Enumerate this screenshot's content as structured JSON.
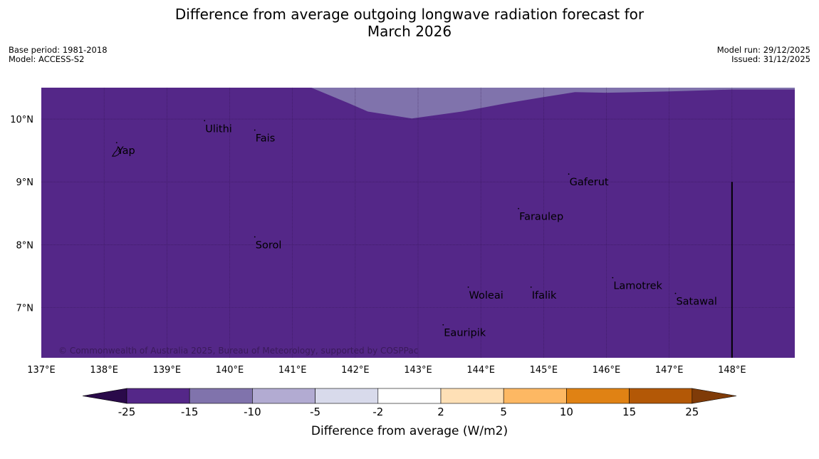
{
  "title": {
    "line1": "Difference from average outgoing longwave radiation forecast for",
    "line2": "March 2026"
  },
  "meta_left": {
    "base_period": "Base period: 1981-2018",
    "model": "Model: ACCESS-S2"
  },
  "meta_right": {
    "model_run": "Model run: 29/12/2025",
    "issued": "Issued: 31/12/2025"
  },
  "lon_labels": [
    "137°E",
    "138°E",
    "139°E",
    "140°E",
    "141°E",
    "142°E",
    "143°E",
    "144°E",
    "145°E",
    "146°E",
    "147°E",
    "148°E"
  ],
  "lat_labels": [
    "10°N",
    "9°N",
    "8°N",
    "7°N"
  ],
  "places": [
    {
      "name": "Yap",
      "lon": 138.2,
      "lat": 9.5
    },
    {
      "name": "Ulithi",
      "lon": 139.6,
      "lat": 9.85
    },
    {
      "name": "Fais",
      "lon": 140.4,
      "lat": 9.7
    },
    {
      "name": "Gaferut",
      "lon": 145.4,
      "lat": 9.0
    },
    {
      "name": "Faraulep",
      "lon": 144.6,
      "lat": 8.45
    },
    {
      "name": "Sorol",
      "lon": 140.4,
      "lat": 8.0
    },
    {
      "name": "Lamotrek",
      "lon": 146.1,
      "lat": 7.35
    },
    {
      "name": "Satawal",
      "lon": 147.1,
      "lat": 7.1
    },
    {
      "name": "Woleai",
      "lon": 143.8,
      "lat": 7.2
    },
    {
      "name": "Ifalik",
      "lon": 144.8,
      "lat": 7.2
    },
    {
      "name": "Eauripik",
      "lon": 143.4,
      "lat": 6.6
    }
  ],
  "map_extent": {
    "lon_min": 137.0,
    "lon_max": 149.0,
    "lat_min": 6.2,
    "lat_max": 10.5
  },
  "anomaly_field": {
    "background_class": "-25 to -15",
    "upper_region_class": "-15 to -10",
    "upper_region_boundary": [
      {
        "lon": 141.3,
        "lat": 10.5
      },
      {
        "lon": 141.9,
        "lat": 10.25
      },
      {
        "lon": 142.2,
        "lat": 10.12
      },
      {
        "lon": 142.9,
        "lat": 10.01
      },
      {
        "lon": 143.7,
        "lat": 10.12
      },
      {
        "lon": 144.4,
        "lat": 10.25
      },
      {
        "lon": 145.0,
        "lat": 10.35
      },
      {
        "lon": 145.5,
        "lat": 10.43
      },
      {
        "lon": 146.0,
        "lat": 10.42
      },
      {
        "lon": 147.0,
        "lat": 10.44
      },
      {
        "lon": 148.0,
        "lat": 10.47
      },
      {
        "lon": 149.0,
        "lat": 10.47
      }
    ]
  },
  "border_line": {
    "lon": 148.0,
    "lat_from": 6.2,
    "lat_to": 9.0
  },
  "copyright": "© Commonwealth of Australia 2025, Bureau of Meteorology, supported by COSPPac",
  "colorbar": {
    "title": "Difference from average (W/m2)",
    "tick_labels": [
      "-25",
      "-15",
      "-10",
      "-5",
      "-2",
      "2",
      "5",
      "10",
      "15",
      "25"
    ],
    "under_color": "#2a0a4a",
    "over_color": "#7f3b08",
    "colors": [
      "#542788",
      "#8073ac",
      "#b2abd2",
      "#d8daeb",
      "#ffffff",
      "#fee0b6",
      "#fdb863",
      "#e08214",
      "#b35806"
    ]
  }
}
